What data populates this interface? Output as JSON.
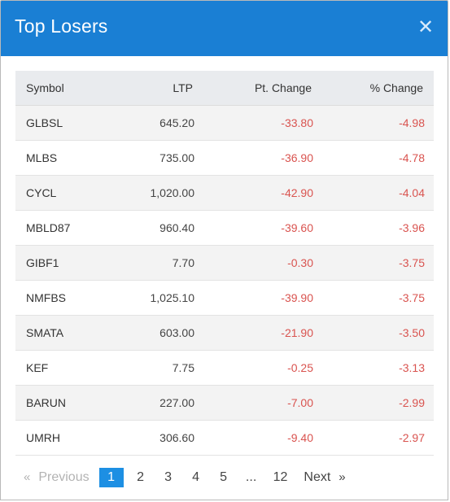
{
  "modal": {
    "title": "Top Losers",
    "close_icon": "close-icon"
  },
  "table": {
    "headers": [
      "Symbol",
      "LTP",
      "Pt. Change",
      "% Change"
    ],
    "rows": [
      {
        "symbol": "GLBSL",
        "ltp": "645.20",
        "pt_change": "-33.80",
        "pct_change": "-4.98"
      },
      {
        "symbol": "MLBS",
        "ltp": "735.00",
        "pt_change": "-36.90",
        "pct_change": "-4.78"
      },
      {
        "symbol": "CYCL",
        "ltp": "1,020.00",
        "pt_change": "-42.90",
        "pct_change": "-4.04"
      },
      {
        "symbol": "MBLD87",
        "ltp": "960.40",
        "pt_change": "-39.60",
        "pct_change": "-3.96"
      },
      {
        "symbol": "GIBF1",
        "ltp": "7.70",
        "pt_change": "-0.30",
        "pct_change": "-3.75"
      },
      {
        "symbol": "NMFBS",
        "ltp": "1,025.10",
        "pt_change": "-39.90",
        "pct_change": "-3.75"
      },
      {
        "symbol": "SMATA",
        "ltp": "603.00",
        "pt_change": "-21.90",
        "pct_change": "-3.50"
      },
      {
        "symbol": "KEF",
        "ltp": "7.75",
        "pt_change": "-0.25",
        "pct_change": "-3.13"
      },
      {
        "symbol": "BARUN",
        "ltp": "227.00",
        "pt_change": "-7.00",
        "pct_change": "-2.99"
      },
      {
        "symbol": "UMRH",
        "ltp": "306.60",
        "pt_change": "-9.40",
        "pct_change": "-2.97"
      }
    ]
  },
  "pagination": {
    "prev_arrow": "«",
    "prev_label": "Previous",
    "pages": [
      "1",
      "2",
      "3",
      "4",
      "5",
      "...",
      "12"
    ],
    "active_page": "1",
    "next_label": "Next",
    "next_arrow": "»"
  },
  "colors": {
    "header_bg": "#1a7fd4",
    "negative": "#d9534f",
    "active_page": "#1d8fe3"
  }
}
